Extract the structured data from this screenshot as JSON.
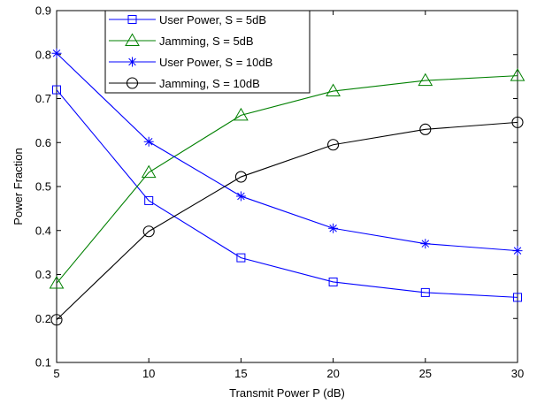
{
  "chart_data": {
    "type": "line",
    "title": "",
    "xlabel": "Transmit Power P (dB)",
    "ylabel": "Power Fraction",
    "xlim": [
      5,
      30
    ],
    "ylim": [
      0.1,
      0.9
    ],
    "xticks": [
      5,
      10,
      15,
      20,
      25,
      30
    ],
    "yticks": [
      0.1,
      0.2,
      0.3,
      0.4,
      0.5,
      0.6,
      0.7,
      0.8,
      0.9
    ],
    "xtick_labels": [
      "5",
      "10",
      "15",
      "20",
      "25",
      "30"
    ],
    "ytick_labels": [
      "0.1",
      "0.2",
      "0.3",
      "0.4",
      "0.5",
      "0.6",
      "0.7",
      "0.8",
      "0.9"
    ],
    "grid": false,
    "legend_position": "top-left",
    "x": [
      5,
      10,
      15,
      20,
      25,
      30
    ],
    "series": [
      {
        "name": "User Power, S = 5dB",
        "values": [
          0.72,
          0.468,
          0.338,
          0.283,
          0.259,
          0.248
        ],
        "color": "#0000ff",
        "marker": "square"
      },
      {
        "name": "Jamming, S = 5dB",
        "values": [
          0.28,
          0.532,
          0.662,
          0.717,
          0.741,
          0.752
        ],
        "color": "#008000",
        "marker": "triangle"
      },
      {
        "name": "User Power, S = 10dB",
        "values": [
          0.803,
          0.602,
          0.478,
          0.405,
          0.37,
          0.354
        ],
        "color": "#0000ff",
        "marker": "asterisk"
      },
      {
        "name": "Jamming, S = 10dB",
        "values": [
          0.197,
          0.398,
          0.522,
          0.595,
          0.63,
          0.646
        ],
        "color": "#000000",
        "marker": "circle"
      }
    ]
  }
}
